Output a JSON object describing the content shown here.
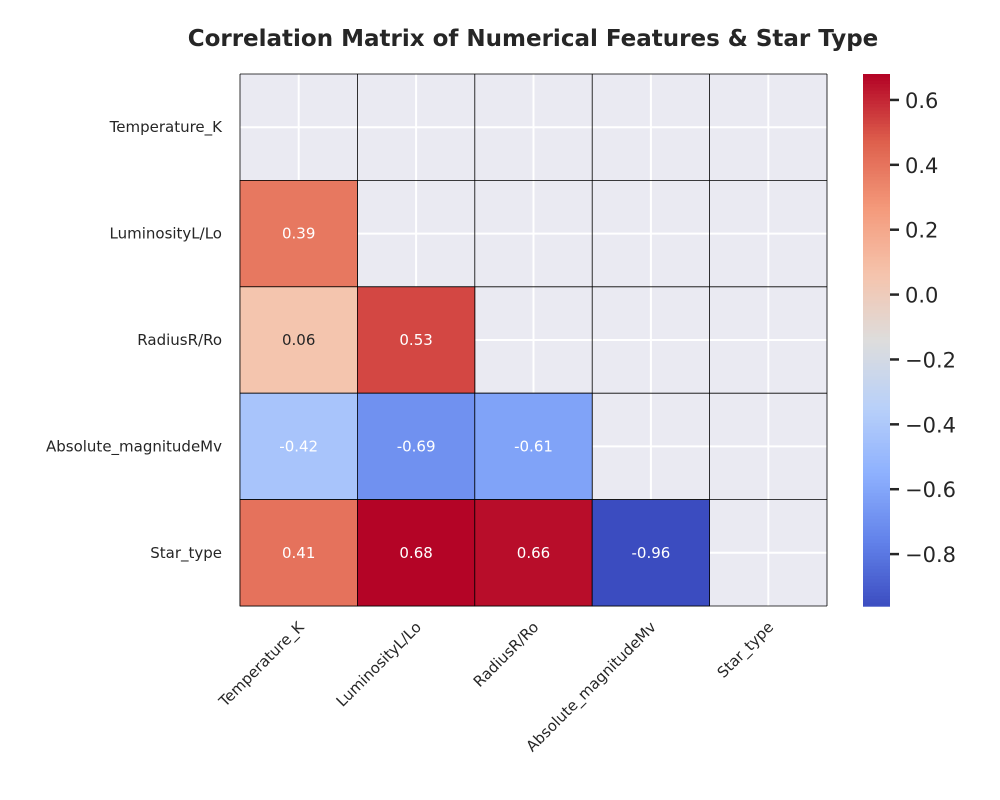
{
  "chart_data": {
    "type": "heatmap",
    "title": "Correlation Matrix of Numerical Features & Star Type",
    "row_labels": [
      "Temperature_K",
      "LuminosityL/Lo",
      "RadiusR/Ro",
      "Absolute_magnitudeMv",
      "Star_type"
    ],
    "col_labels": [
      "Temperature_K",
      "LuminosityL/Lo",
      "RadiusR/Ro",
      "Absolute_magnitudeMv",
      "Star_type"
    ],
    "masked": "upper triangle including diagonal",
    "cells": [
      {
        "row": 1,
        "col": 0,
        "value": 0.39,
        "label": "0.39"
      },
      {
        "row": 2,
        "col": 0,
        "value": 0.06,
        "label": "0.06"
      },
      {
        "row": 2,
        "col": 1,
        "value": 0.53,
        "label": "0.53"
      },
      {
        "row": 3,
        "col": 0,
        "value": -0.42,
        "label": "-0.42"
      },
      {
        "row": 3,
        "col": 1,
        "value": -0.69,
        "label": "-0.69"
      },
      {
        "row": 3,
        "col": 2,
        "value": -0.61,
        "label": "-0.61"
      },
      {
        "row": 4,
        "col": 0,
        "value": 0.41,
        "label": "0.41"
      },
      {
        "row": 4,
        "col": 1,
        "value": 0.68,
        "label": "0.68"
      },
      {
        "row": 4,
        "col": 2,
        "value": 0.66,
        "label": "0.66"
      },
      {
        "row": 4,
        "col": 3,
        "value": -0.96,
        "label": "-0.96"
      }
    ],
    "colormap": "coolwarm",
    "colorbar": {
      "vmin": -0.96,
      "vmax": 0.68,
      "ticks": [
        0.6,
        0.4,
        0.2,
        0.0,
        -0.2,
        -0.4,
        -0.6,
        -0.8
      ],
      "tick_labels": [
        "0.6",
        "0.4",
        "0.2",
        "0.0",
        "−0.2",
        "−0.4",
        "−0.6",
        "−0.8"
      ]
    },
    "colors": {
      "masked_background": "#eaeaf2",
      "grid": "#ffffff",
      "cell_border": "#000000",
      "text_dark": "#262626",
      "text_light": "#ffffff"
    }
  }
}
